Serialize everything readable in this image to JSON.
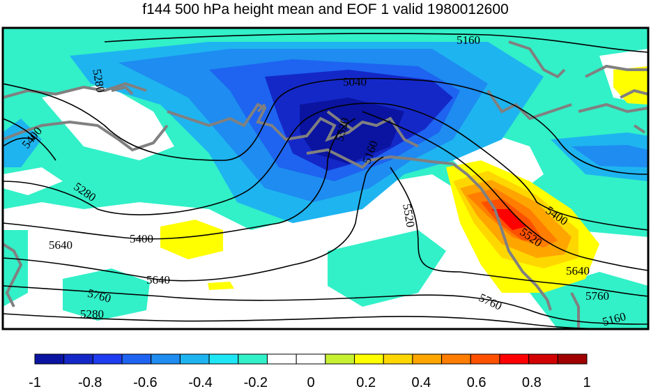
{
  "title": "f144 500 hPa height mean and EOF 1 valid 1980012600",
  "contour_labels": [
    "5160",
    "5280",
    "5040",
    "5400",
    "5520",
    "5160",
    "5280",
    "5400",
    "5640",
    "5520",
    "5640",
    "5760",
    "5280",
    "5400",
    "5520",
    "5640",
    "5760",
    "5760",
    "5160",
    "5280",
    "5400",
    "5520"
  ],
  "colorbar": {
    "ticks": [
      "-1",
      "-0.8",
      "-0.6",
      "-0.4",
      "-0.2",
      "0",
      "0.2",
      "0.4",
      "0.6",
      "0.8",
      "1"
    ],
    "colors": [
      "#0a14a0",
      "#1428c8",
      "#1e3cf0",
      "#1e64f0",
      "#1e8cf0",
      "#1eb4f0",
      "#1ee6f5",
      "#32f0c8",
      "#ffffff",
      "#ffffff",
      "#c8f032",
      "#ffff00",
      "#ffd700",
      "#ffa500",
      "#ff7d00",
      "#ff5000",
      "#ff0000",
      "#d20000",
      "#a00000"
    ]
  }
}
